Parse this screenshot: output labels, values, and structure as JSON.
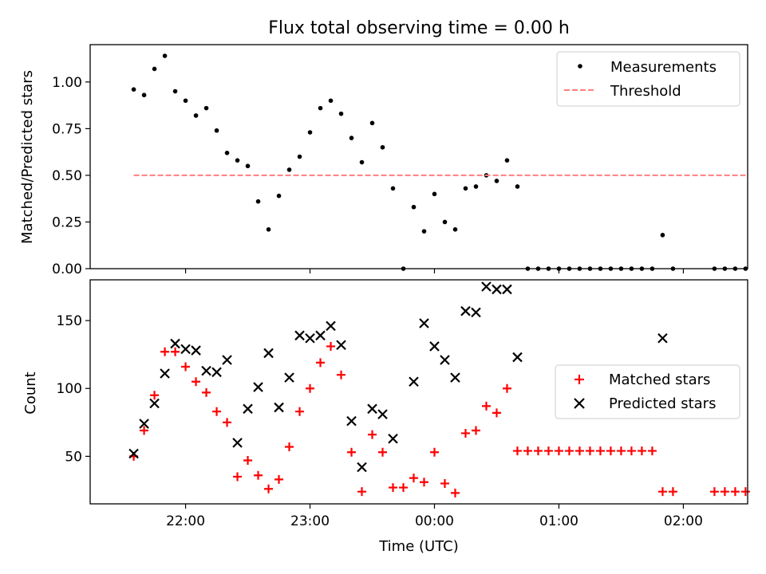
{
  "figure_title": "Flux total observing time = 0.00 h",
  "chart_data": [
    {
      "type": "scatter",
      "title": "Flux total observing time = 0.00 h",
      "xlabel": "",
      "ylabel": "Matched/Predicted stars",
      "x_unit": "time_utc",
      "xlim": [
        "21:14",
        "02:31"
      ],
      "ylim": [
        0,
        1.2
      ],
      "yticks": [
        0.0,
        0.25,
        0.5,
        0.75,
        1.0
      ],
      "ytick_labels": [
        "0.00",
        "0.25",
        "0.50",
        "0.75",
        "1.00"
      ],
      "xticks": [
        "22:00",
        "23:00",
        "00:00",
        "01:00",
        "02:00"
      ],
      "xtick_labels_visible": false,
      "grid": false,
      "legend": "top-right",
      "series": [
        {
          "name": "Measurements",
          "kind": "scatter",
          "marker": "dot",
          "color": "#000000",
          "points": [
            [
              "21:35",
              0.96
            ],
            [
              "21:40",
              0.93
            ],
            [
              "21:45",
              1.07
            ],
            [
              "21:50",
              1.14
            ],
            [
              "21:55",
              0.95
            ],
            [
              "22:00",
              0.9
            ],
            [
              "22:05",
              0.82
            ],
            [
              "22:10",
              0.86
            ],
            [
              "22:15",
              0.74
            ],
            [
              "22:20",
              0.62
            ],
            [
              "22:25",
              0.58
            ],
            [
              "22:30",
              0.55
            ],
            [
              "22:35",
              0.36
            ],
            [
              "22:40",
              0.21
            ],
            [
              "22:45",
              0.39
            ],
            [
              "22:50",
              0.53
            ],
            [
              "22:55",
              0.6
            ],
            [
              "23:00",
              0.73
            ],
            [
              "23:05",
              0.86
            ],
            [
              "23:10",
              0.9
            ],
            [
              "23:15",
              0.83
            ],
            [
              "23:20",
              0.7
            ],
            [
              "23:25",
              0.57
            ],
            [
              "23:30",
              0.78
            ],
            [
              "23:35",
              0.65
            ],
            [
              "23:40",
              0.43
            ],
            [
              "23:45",
              0.0
            ],
            [
              "23:50",
              0.33
            ],
            [
              "23:55",
              0.2
            ],
            [
              "00:00",
              0.4
            ],
            [
              "00:05",
              0.25
            ],
            [
              "00:10",
              0.21
            ],
            [
              "00:15",
              0.43
            ],
            [
              "00:20",
              0.44
            ],
            [
              "00:25",
              0.5
            ],
            [
              "00:30",
              0.47
            ],
            [
              "00:35",
              0.58
            ],
            [
              "00:40",
              0.44
            ],
            [
              "00:45",
              0.0
            ],
            [
              "00:50",
              0.0
            ],
            [
              "00:55",
              0.0
            ],
            [
              "01:00",
              0.0
            ],
            [
              "01:05",
              0.0
            ],
            [
              "01:10",
              0.0
            ],
            [
              "01:15",
              0.0
            ],
            [
              "01:20",
              0.0
            ],
            [
              "01:25",
              0.0
            ],
            [
              "01:30",
              0.0
            ],
            [
              "01:35",
              0.0
            ],
            [
              "01:40",
              0.0
            ],
            [
              "01:45",
              0.0
            ],
            [
              "01:50",
              0.18
            ],
            [
              "01:55",
              0.0
            ],
            [
              "02:15",
              0.0
            ],
            [
              "02:20",
              0.0
            ],
            [
              "02:25",
              0.0
            ],
            [
              "02:30",
              0.0
            ]
          ]
        },
        {
          "name": "Threshold",
          "kind": "line",
          "style": "dashed",
          "color": "#ff7f7f",
          "points": [
            [
              "21:35",
              0.5
            ],
            [
              "02:30",
              0.5
            ]
          ]
        }
      ]
    },
    {
      "type": "scatter",
      "xlabel": "Time (UTC)",
      "ylabel": "Count",
      "x_unit": "time_utc",
      "xlim": [
        "21:14",
        "02:31"
      ],
      "ylim": [
        15,
        180
      ],
      "yticks": [
        50,
        100,
        150
      ],
      "ytick_labels": [
        "50",
        "100",
        "150"
      ],
      "xticks": [
        "22:00",
        "23:00",
        "00:00",
        "01:00",
        "02:00"
      ],
      "xtick_labels": [
        "22:00",
        "23:00",
        "00:00",
        "01:00",
        "02:00"
      ],
      "grid": false,
      "legend": "right",
      "series": [
        {
          "name": "Matched stars",
          "marker": "plus",
          "color": "#ff0000",
          "points": [
            [
              "21:35",
              50
            ],
            [
              "21:40",
              69
            ],
            [
              "21:45",
              95
            ],
            [
              "21:50",
              127
            ],
            [
              "21:55",
              127
            ],
            [
              "22:00",
              116
            ],
            [
              "22:05",
              105
            ],
            [
              "22:10",
              97
            ],
            [
              "22:15",
              83
            ],
            [
              "22:20",
              75
            ],
            [
              "22:25",
              35
            ],
            [
              "22:30",
              47
            ],
            [
              "22:35",
              36
            ],
            [
              "22:40",
              26
            ],
            [
              "22:45",
              33
            ],
            [
              "22:50",
              57
            ],
            [
              "22:55",
              83
            ],
            [
              "23:00",
              100
            ],
            [
              "23:05",
              119
            ],
            [
              "23:10",
              131
            ],
            [
              "23:15",
              110
            ],
            [
              "23:20",
              53
            ],
            [
              "23:25",
              24
            ],
            [
              "23:30",
              66
            ],
            [
              "23:35",
              53
            ],
            [
              "23:40",
              27
            ],
            [
              "23:45",
              27
            ],
            [
              "23:50",
              34
            ],
            [
              "23:55",
              31
            ],
            [
              "00:00",
              53
            ],
            [
              "00:05",
              30
            ],
            [
              "00:10",
              23
            ],
            [
              "00:15",
              67
            ],
            [
              "00:20",
              69
            ],
            [
              "00:25",
              87
            ],
            [
              "00:30",
              82
            ],
            [
              "00:35",
              100
            ],
            [
              "00:40",
              54
            ],
            [
              "00:45",
              54
            ],
            [
              "00:50",
              54
            ],
            [
              "00:55",
              54
            ],
            [
              "01:00",
              54
            ],
            [
              "01:05",
              54
            ],
            [
              "01:10",
              54
            ],
            [
              "01:15",
              54
            ],
            [
              "01:20",
              54
            ],
            [
              "01:25",
              54
            ],
            [
              "01:30",
              54
            ],
            [
              "01:35",
              54
            ],
            [
              "01:40",
              54
            ],
            [
              "01:45",
              54
            ],
            [
              "01:50",
              24
            ],
            [
              "01:55",
              24
            ],
            [
              "02:15",
              24
            ],
            [
              "02:20",
              24
            ],
            [
              "02:25",
              24
            ],
            [
              "02:30",
              24
            ]
          ]
        },
        {
          "name": "Predicted stars",
          "marker": "x",
          "color": "#000000",
          "points": [
            [
              "21:35",
              52
            ],
            [
              "21:40",
              74
            ],
            [
              "21:45",
              89
            ],
            [
              "21:50",
              111
            ],
            [
              "21:55",
              133
            ],
            [
              "22:00",
              129
            ],
            [
              "22:05",
              128
            ],
            [
              "22:10",
              113
            ],
            [
              "22:15",
              112
            ],
            [
              "22:20",
              121
            ],
            [
              "22:25",
              60
            ],
            [
              "22:30",
              85
            ],
            [
              "22:35",
              101
            ],
            [
              "22:40",
              126
            ],
            [
              "22:45",
              86
            ],
            [
              "22:50",
              108
            ],
            [
              "22:55",
              139
            ],
            [
              "23:00",
              137
            ],
            [
              "23:05",
              139
            ],
            [
              "23:10",
              146
            ],
            [
              "23:15",
              132
            ],
            [
              "23:20",
              76
            ],
            [
              "23:25",
              42
            ],
            [
              "23:30",
              85
            ],
            [
              "23:35",
              81
            ],
            [
              "23:40",
              63
            ],
            [
              "23:50",
              105
            ],
            [
              "23:55",
              148
            ],
            [
              "00:00",
              131
            ],
            [
              "00:05",
              121
            ],
            [
              "00:10",
              108
            ],
            [
              "00:15",
              157
            ],
            [
              "00:20",
              156
            ],
            [
              "00:25",
              175
            ],
            [
              "00:30",
              173
            ],
            [
              "00:35",
              173
            ],
            [
              "00:40",
              123
            ],
            [
              "01:50",
              137
            ]
          ]
        }
      ]
    }
  ]
}
